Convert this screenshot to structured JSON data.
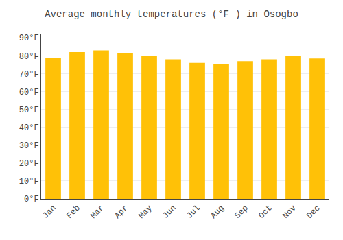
{
  "chart_data": {
    "type": "bar",
    "title": "Average monthly temperatures (°F ) in Osogbo",
    "categories": [
      "Jan",
      "Feb",
      "Mar",
      "Apr",
      "May",
      "Jun",
      "Jul",
      "Aug",
      "Sep",
      "Oct",
      "Nov",
      "Dec"
    ],
    "values": [
      79,
      82,
      83,
      81.5,
      80,
      78,
      76,
      75.5,
      77,
      78,
      80,
      78.5
    ],
    "color": "#FFC107",
    "ylim": [
      0,
      92
    ],
    "yticks": [
      {
        "value": 0,
        "label": "0°F"
      },
      {
        "value": 10,
        "label": "10°F"
      },
      {
        "value": 20,
        "label": "20°F"
      },
      {
        "value": 30,
        "label": "30°F"
      },
      {
        "value": 40,
        "label": "40°F"
      },
      {
        "value": 50,
        "label": "50°F"
      },
      {
        "value": 60,
        "label": "60°F"
      },
      {
        "value": 70,
        "label": "70°F"
      },
      {
        "value": 80,
        "label": "80°F"
      },
      {
        "value": 90,
        "label": "90°F"
      }
    ],
    "grid": true
  }
}
